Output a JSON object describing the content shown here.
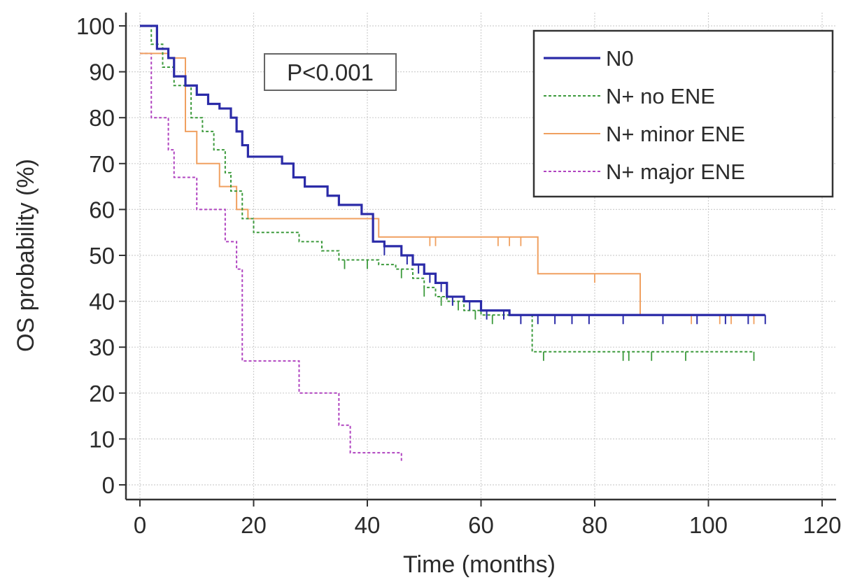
{
  "chart_data": {
    "type": "line",
    "subtype": "kaplan-meier",
    "title": "",
    "xlabel": "Time (months)",
    "ylabel": "OS probability (%)",
    "xlim": [
      0,
      120
    ],
    "ylim": [
      0,
      100
    ],
    "xticks": [
      0,
      20,
      40,
      60,
      80,
      100,
      120
    ],
    "yticks": [
      0,
      10,
      20,
      30,
      40,
      50,
      60,
      70,
      80,
      90,
      100
    ],
    "grid": true,
    "legend_position": "top-right",
    "annotation": "P<0.001",
    "series": [
      {
        "name": "N0",
        "color": "#2b2ba8",
        "style": "solid",
        "steps": [
          [
            0,
            100
          ],
          [
            3,
            95
          ],
          [
            5,
            93
          ],
          [
            6,
            89
          ],
          [
            8,
            87
          ],
          [
            10,
            85
          ],
          [
            12,
            83
          ],
          [
            14,
            82
          ],
          [
            16,
            80
          ],
          [
            17,
            77
          ],
          [
            18,
            74
          ],
          [
            19,
            71.5
          ],
          [
            25,
            70
          ],
          [
            27,
            67
          ],
          [
            29,
            65
          ],
          [
            33,
            63
          ],
          [
            35,
            61
          ],
          [
            39,
            59
          ],
          [
            41,
            53
          ],
          [
            43,
            52
          ],
          [
            46,
            50
          ],
          [
            48,
            48
          ],
          [
            50,
            46
          ],
          [
            52,
            44
          ],
          [
            54,
            41
          ],
          [
            57,
            40
          ],
          [
            60,
            38
          ],
          [
            65,
            37
          ],
          [
            110,
            37
          ]
        ],
        "censor": [
          43,
          47,
          49,
          51,
          53,
          55,
          58,
          61,
          64,
          67,
          70,
          73,
          76,
          79,
          85,
          92,
          98,
          103,
          107,
          110
        ]
      },
      {
        "name": "N+ no ENE",
        "color": "#3c9a3c",
        "style": "dashed",
        "steps": [
          [
            0,
            100
          ],
          [
            2,
            96
          ],
          [
            4,
            91
          ],
          [
            6,
            87
          ],
          [
            9,
            80
          ],
          [
            11,
            77
          ],
          [
            13,
            73
          ],
          [
            15,
            68
          ],
          [
            16,
            64
          ],
          [
            18,
            58
          ],
          [
            20,
            55
          ],
          [
            28,
            53
          ],
          [
            32,
            51
          ],
          [
            35,
            49
          ],
          [
            40,
            49
          ],
          [
            42,
            48
          ],
          [
            45,
            47
          ],
          [
            48,
            45
          ],
          [
            50,
            43
          ],
          [
            52,
            41
          ],
          [
            54,
            40
          ],
          [
            57,
            38
          ],
          [
            60,
            37
          ],
          [
            69,
            29
          ],
          [
            108,
            29
          ]
        ],
        "censor": [
          36,
          40,
          46,
          50,
          53,
          56,
          59,
          62,
          71,
          85,
          86,
          90,
          96,
          108
        ]
      },
      {
        "name": "N+ minor ENE",
        "color": "#f0a060",
        "style": "solid",
        "steps": [
          [
            0,
            94
          ],
          [
            5,
            93
          ],
          [
            8,
            77
          ],
          [
            10,
            70
          ],
          [
            14,
            65
          ],
          [
            17,
            60
          ],
          [
            19,
            58
          ],
          [
            42,
            54
          ],
          [
            70,
            46
          ],
          [
            88,
            37
          ],
          [
            110,
            37
          ]
        ],
        "censor": [
          51,
          52,
          63,
          65,
          67,
          80,
          97,
          102,
          104,
          108
        ]
      },
      {
        "name": "N+ major ENE",
        "color": "#b044c0",
        "style": "dashed",
        "steps": [
          [
            0,
            94
          ],
          [
            2,
            80
          ],
          [
            5,
            73
          ],
          [
            6,
            67
          ],
          [
            10,
            60
          ],
          [
            15,
            53
          ],
          [
            17,
            47
          ],
          [
            18,
            27
          ],
          [
            28,
            20
          ],
          [
            35,
            13
          ],
          [
            37,
            7
          ],
          [
            46,
            5
          ]
        ],
        "censor": []
      }
    ]
  }
}
